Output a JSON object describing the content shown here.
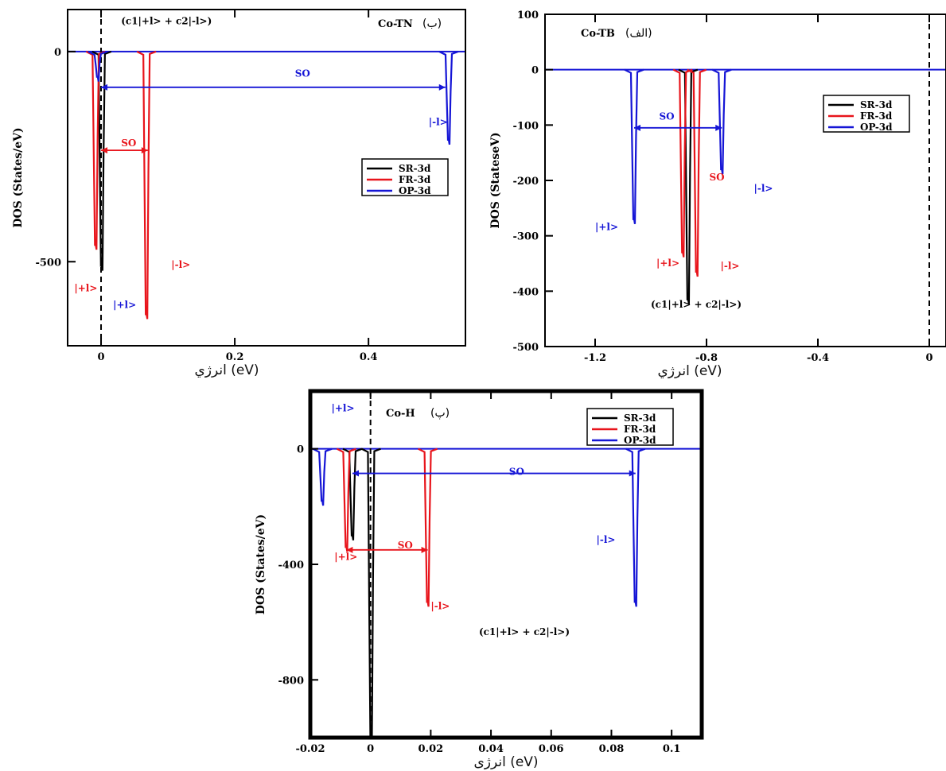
{
  "chart_data": [
    {
      "id": "co-tn",
      "type": "line",
      "title": "Co-TN",
      "panel_letter": "(ب)",
      "ylabel": "DOS (States/eV)",
      "xlabel": "انرژي (eV)",
      "xlim": [
        -0.05,
        0.545
      ],
      "ylim": [
        -700,
        100
      ],
      "xticks": [
        0,
        0.2,
        0.4
      ],
      "xtick_labels": [
        "0",
        "0.2",
        "0.4"
      ],
      "yticks": [
        0,
        -500
      ],
      "ytick_labels": [
        "0",
        "-500"
      ],
      "fermi_x": 0,
      "legend": [
        "SR-3d",
        "FR-3d",
        "OP-3d"
      ],
      "colors": {
        "SR-3d": "#000000",
        "FR-3d": "#e8141b",
        "OP-3d": "#1515d6"
      },
      "series": [
        {
          "name": "SR-3d",
          "peaks": [
            {
              "x": 0.001,
              "y": -510
            }
          ]
        },
        {
          "name": "FR-3d",
          "peaks": [
            {
              "x": -0.008,
              "y": -460
            },
            {
              "x": 0.068,
              "y": -625
            }
          ]
        },
        {
          "name": "OP-3d",
          "peaks": [
            {
              "x": -0.005,
              "y": -60
            },
            {
              "x": 0.52,
              "y": -210
            }
          ]
        }
      ],
      "annotations": [
        {
          "text": "(c1|+l> + c2|-l>)",
          "color": "#000000",
          "x": 0.03,
          "y": 65
        },
        {
          "text": "SO",
          "color": "#1515d6",
          "x": 0.29,
          "y": -60
        },
        {
          "text": "SO",
          "color": "#e8141b",
          "x": 0.03,
          "y": -225
        },
        {
          "text": "|-l>",
          "color": "#1515d6",
          "x": 0.49,
          "y": -175
        },
        {
          "text": "|-l>",
          "color": "#e8141b",
          "x": 0.105,
          "y": -515
        },
        {
          "text": "|+l>",
          "color": "#e8141b",
          "x": -0.04,
          "y": -570
        },
        {
          "text": "|+l>",
          "color": "#1515d6",
          "x": 0.018,
          "y": -610
        }
      ]
    },
    {
      "id": "co-tb",
      "type": "line",
      "title": "Co-TB",
      "panel_letter": "(الف)",
      "ylabel": "DOS (StateseV)",
      "xlabel": "انرژي (eV)",
      "xlim": [
        -1.38,
        0.06
      ],
      "ylim": [
        -500,
        100
      ],
      "xticks": [
        -1.2,
        -0.8,
        -0.4,
        0
      ],
      "xtick_labels": [
        "-1.2",
        "-0.8",
        "-0.4",
        "0"
      ],
      "yticks": [
        100,
        0,
        -100,
        -200,
        -300,
        -400,
        -500
      ],
      "ytick_labels": [
        "100",
        "0",
        "-100",
        "-200",
        "-300",
        "-400",
        "-500"
      ],
      "fermi_x": 0,
      "legend": [
        "SR-3d",
        "FR-3d",
        "OP-3d"
      ],
      "colors": {
        "SR-3d": "#000000",
        "FR-3d": "#e8141b",
        "OP-3d": "#1515d6"
      },
      "series": [
        {
          "name": "SR-3d",
          "peaks": [
            {
              "x": -0.866,
              "y": -415
            }
          ]
        },
        {
          "name": "FR-3d",
          "peaks": [
            {
              "x": -0.885,
              "y": -330
            },
            {
              "x": -0.835,
              "y": -365
            }
          ]
        },
        {
          "name": "OP-3d",
          "peaks": [
            {
              "x": -1.06,
              "y": -270
            },
            {
              "x": -0.745,
              "y": -180
            }
          ]
        }
      ],
      "annotations": [
        {
          "text": "Co-TB",
          "color": "#000000",
          "x": -1.22,
          "y": 60
        },
        {
          "text": "SO",
          "color": "#1515d6",
          "x": -0.97,
          "y": -90
        },
        {
          "text": "SO",
          "color": "#e8141b",
          "x": -0.79,
          "y": -200
        },
        {
          "text": "|-l>",
          "color": "#1515d6",
          "x": -0.63,
          "y": -220
        },
        {
          "text": "|+l>",
          "color": "#1515d6",
          "x": -1.2,
          "y": -290
        },
        {
          "text": "|+l>",
          "color": "#e8141b",
          "x": -0.98,
          "y": -355
        },
        {
          "text": "|-l>",
          "color": "#e8141b",
          "x": -0.75,
          "y": -360
        },
        {
          "text": "(c1|+l> + c2|-l>)",
          "color": "#000000",
          "x": -1.0,
          "y": -430
        }
      ]
    },
    {
      "id": "co-h",
      "type": "line",
      "title": "Co-H",
      "panel_letter": "(پ)",
      "ylabel": "DOS (States/eV)",
      "xlabel": "انرژی (eV)",
      "xlim": [
        -0.02,
        0.11
      ],
      "ylim": [
        -1000,
        200
      ],
      "xticks": [
        -0.02,
        0,
        0.02,
        0.04,
        0.06,
        0.08,
        0.1
      ],
      "xtick_labels": [
        "-0.02",
        "0",
        "0.02",
        "0.04",
        "0.06",
        "0.08",
        "0.1"
      ],
      "yticks": [
        0,
        -400,
        -800
      ],
      "ytick_labels": [
        "0",
        "-400",
        "-800"
      ],
      "fermi_x": 0,
      "legend": [
        "SR-3d",
        "FR-3d",
        "OP-3d"
      ],
      "colors": {
        "SR-3d": "#000000",
        "FR-3d": "#e8141b",
        "OP-3d": "#1515d6"
      },
      "series": [
        {
          "name": "SR-3d",
          "peaks": [
            {
              "x": 0.0002,
              "y": -990
            },
            {
              "x": -0.006,
              "y": -300
            }
          ]
        },
        {
          "name": "FR-3d",
          "peaks": [
            {
              "x": -0.008,
              "y": -340
            },
            {
              "x": 0.019,
              "y": -530
            }
          ]
        },
        {
          "name": "OP-3d",
          "peaks": [
            {
              "x": -0.016,
              "y": -180
            },
            {
              "x": 0.088,
              "y": -530
            }
          ]
        }
      ],
      "annotations": [
        {
          "text": "|+l>",
          "color": "#1515d6",
          "x": -0.013,
          "y": 130
        },
        {
          "text": "SO",
          "color": "#1515d6",
          "x": 0.046,
          "y": -90
        },
        {
          "text": "SO",
          "color": "#e8141b",
          "x": 0.009,
          "y": -345
        },
        {
          "text": "|-l>",
          "color": "#1515d6",
          "x": 0.075,
          "y": -325
        },
        {
          "text": "|+l>",
          "color": "#e8141b",
          "x": -0.012,
          "y": -385
        },
        {
          "text": "|-l>",
          "color": "#e8141b",
          "x": 0.02,
          "y": -555
        },
        {
          "text": "(c1|+l> + c2|-l>)",
          "color": "#000000",
          "x": 0.036,
          "y": -645
        }
      ]
    }
  ]
}
